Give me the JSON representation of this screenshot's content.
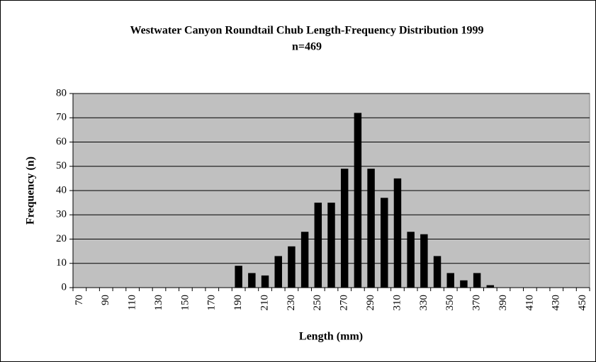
{
  "chart_data": {
    "type": "bar",
    "title": "Westwater Canyon Roundtail Chub Length-Frequency Distribution 1999",
    "subtitle": "n=469",
    "x_label": "Length (mm)",
    "y_label": "Frequency (n)",
    "categories": [
      70,
      null,
      90,
      null,
      110,
      null,
      130,
      null,
      150,
      null,
      170,
      null,
      190,
      null,
      210,
      null,
      230,
      null,
      250,
      null,
      270,
      null,
      290,
      null,
      310,
      null,
      330,
      null,
      350,
      null,
      370,
      null,
      390,
      null,
      410,
      null,
      430,
      null,
      450
    ],
    "values": [
      0,
      0,
      0,
      0,
      0,
      0,
      0,
      0,
      0,
      0,
      0,
      0,
      9,
      6,
      5,
      13,
      17,
      23,
      35,
      35,
      49,
      72,
      49,
      37,
      45,
      23,
      22,
      13,
      6,
      3,
      6,
      1,
      0,
      0,
      0,
      0,
      0,
      0,
      0
    ],
    "color": "#000000",
    "background": "#c0c0c0",
    "ylim": [
      0,
      80
    ],
    "yticks": [
      0,
      10,
      20,
      30,
      40,
      50,
      60,
      70,
      80
    ],
    "grid": true
  }
}
